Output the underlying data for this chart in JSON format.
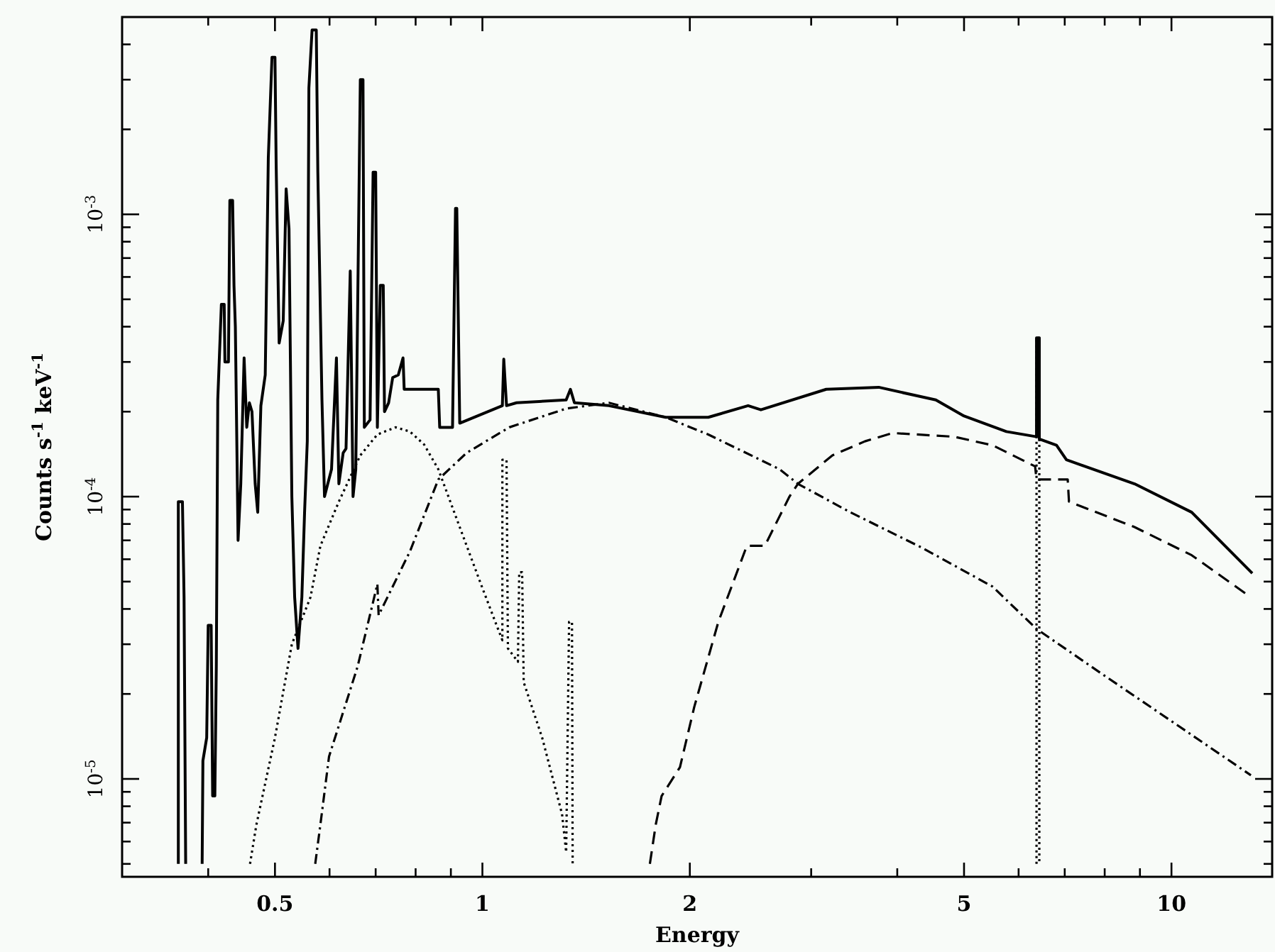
{
  "chart_data": {
    "type": "line",
    "xlabel": "Energy",
    "ylabel": "Counts s$^{-1}$ keV$^{-1}$",
    "log": "xy",
    "grid": false,
    "xlim": [
      0.3,
      14
    ],
    "ylim": [
      4.5e-06,
      0.005
    ],
    "xticks": [
      {
        "value": 0.4,
        "label": null
      },
      0.5,
      {
        "value": 0.6,
        "label": null
      },
      {
        "value": 0.7,
        "label": null
      },
      {
        "value": 0.8,
        "label": null
      },
      {
        "value": 0.9,
        "label": null
      },
      1,
      2,
      {
        "value": 3,
        "label": null
      },
      {
        "value": 4,
        "label": null
      },
      5,
      {
        "value": 6,
        "label": null
      },
      {
        "value": 7,
        "label": null
      },
      {
        "value": 8,
        "label": null
      },
      {
        "value": 9,
        "label": null
      },
      10
    ],
    "yticks": [
      {
        "value": 5e-06,
        "label": null
      },
      {
        "value": 6e-06,
        "label": null
      },
      {
        "value": 7e-06,
        "label": null
      },
      {
        "value": 8e-06,
        "label": null
      },
      {
        "value": 9e-06,
        "label": null
      },
      {
        "value": 1e-05,
        "label": "10$^{-5}$"
      },
      {
        "value": 2e-05,
        "label": null
      },
      {
        "value": 3e-05,
        "label": null
      },
      {
        "value": 4e-05,
        "label": null
      },
      {
        "value": 5e-05,
        "label": null
      },
      {
        "value": 6e-05,
        "label": null
      },
      {
        "value": 7e-05,
        "label": null
      },
      {
        "value": 8e-05,
        "label": null
      },
      {
        "value": 9e-05,
        "label": null
      },
      {
        "value": 0.0001,
        "label": "10$^{-4}$"
      },
      {
        "value": 0.0002,
        "label": null
      },
      {
        "value": 0.0003,
        "label": null
      },
      {
        "value": 0.0004,
        "label": null
      },
      {
        "value": 0.0005,
        "label": null
      },
      {
        "value": 0.0006,
        "label": null
      },
      {
        "value": 0.0007,
        "label": null
      },
      {
        "value": 0.0008,
        "label": null
      },
      {
        "value": 0.0009,
        "label": null
      },
      {
        "value": 0.001,
        "label": "10$^{-3}$"
      },
      {
        "value": 0.002,
        "label": null
      },
      {
        "value": 0.003,
        "label": null
      },
      {
        "value": 0.004,
        "label": null
      }
    ],
    "series": [
      {
        "color": "#000000",
        "line_style": "solid",
        "x": [
          0.362,
          0.362,
          0.367,
          0.369,
          0.371
        ],
        "values": [
          5e-06,
          9.6e-05,
          9.6e-05,
          4.4e-05,
          5e-06
        ]
      },
      {
        "color": "#000000",
        "line_style": "solid",
        "x": [
          0.392,
          0.393,
          0.398,
          0.4,
          0.404,
          0.406,
          0.409,
          0.411,
          0.413,
          0.418,
          0.422,
          0.423,
          0.428,
          0.43,
          0.434,
          0.436,
          0.438,
          0.442,
          0.446,
          0.451,
          0.455,
          0.459,
          0.463,
          0.468,
          0.472,
          0.477,
          0.484,
          0.489,
          0.495,
          0.5,
          0.502,
          0.507,
          0.514,
          0.519,
          0.524,
          0.529,
          0.534,
          0.54,
          0.547,
          0.552,
          0.557,
          0.56,
          0.566,
          0.574,
          0.577,
          0.585,
          0.59,
          0.604,
          0.614,
          0.619,
          0.628,
          0.634,
          0.643,
          0.649,
          0.655,
          0.665,
          0.671,
          0.674,
          0.687,
          0.694,
          0.7,
          0.704,
          0.711,
          0.718,
          0.721,
          0.731,
          0.741,
          0.755,
          0.767,
          0.77,
          0.823,
          0.863,
          0.867,
          0.905,
          0.914,
          0.918,
          0.927,
          1.069,
          1.074,
          1.084,
          1.121,
          1.323,
          1.342,
          1.36,
          1.526,
          1.845,
          2.127,
          2.43,
          2.536,
          3.155,
          3.76,
          4.55,
          5.0,
          5.76,
          6.37,
          6.37,
          6.43,
          6.43,
          6.81,
          7.04,
          8.84,
          10.7,
          13.1
        ],
        "values": [
          5e-06,
          1.16e-05,
          1.4e-05,
          3.5e-05,
          3.5e-05,
          8.7e-06,
          8.7e-06,
          2.5e-05,
          0.00022,
          0.00048,
          0.00048,
          0.0003,
          0.0003,
          0.00112,
          0.00112,
          0.00056,
          0.0004,
          7e-05,
          0.000111,
          0.00031,
          0.000176,
          0.000215,
          0.0002,
          0.000111,
          8.8e-05,
          0.00021,
          0.00027,
          0.00159,
          0.0036,
          0.0036,
          0.0015,
          0.00035,
          0.00042,
          0.00123,
          0.00089,
          0.0001,
          4.4e-05,
          2.9e-05,
          4.4e-05,
          8.8e-05,
          0.000157,
          0.0028,
          0.0045,
          0.0045,
          0.00141,
          0.00022,
          0.0001,
          0.000125,
          0.00031,
          0.000111,
          0.000143,
          0.000148,
          0.00063,
          0.0001,
          0.000125,
          0.003,
          0.003,
          0.000176,
          0.000187,
          0.00141,
          0.00141,
          0.000176,
          0.00056,
          0.00056,
          0.0002,
          0.000215,
          0.000264,
          0.00027,
          0.00031,
          0.00024,
          0.00024,
          0.00024,
          0.000176,
          0.000176,
          0.00105,
          0.00105,
          0.000182,
          0.00021,
          0.000307,
          0.00021,
          0.000215,
          0.00022,
          0.00024,
          0.000215,
          0.00021,
          0.000191,
          0.000191,
          0.00021,
          0.000203,
          0.00024,
          0.000244,
          0.00022,
          0.000193,
          0.00017,
          0.000163,
          0.000365,
          0.000365,
          0.00016,
          0.000152,
          0.000135,
          0.000111,
          8.8e-05,
          5.35e-05
        ]
      },
      {
        "color": "#000000",
        "line_style": "dotted",
        "x": [
          0.46,
          0.47,
          0.5,
          0.529,
          0.563,
          0.582,
          0.619,
          0.665,
          0.704,
          0.748,
          0.785,
          0.823,
          0.863,
          0.927,
          0.995,
          1.044,
          1.069,
          1.069,
          1.084,
          1.089,
          1.126,
          1.131,
          1.142,
          1.148,
          1.221,
          1.305,
          1.323,
          1.336,
          1.349,
          1.352
        ],
        "values": [
          5e-06,
          6.9e-06,
          1.4e-05,
          3e-05,
          4.4e-05,
          6.7e-05,
          9.6e-05,
          0.00014,
          0.000166,
          0.000176,
          0.00017,
          0.000153,
          0.000125,
          7.8e-05,
          4.9e-05,
          3.6e-05,
          3.1e-05,
          0.000135,
          0.000135,
          2.9e-05,
          2.6e-05,
          5.4e-05,
          5.4e-05,
          2.2e-05,
          1.4e-05,
          7.5e-06,
          5.5e-06,
          3.6e-05,
          3.6e-05,
          5e-06
        ]
      },
      {
        "color": "#000000",
        "line_style": "dotted",
        "x": [
          6.37,
          6.37,
          6.43,
          6.43
        ],
        "values": [
          5e-06,
          0.000365,
          0.000365,
          5e-06
        ]
      },
      {
        "color": "#000000",
        "line_style": "dashdot",
        "x": [
          0.572,
          0.582,
          0.599,
          0.659,
          0.704,
          0.707,
          0.785,
          0.863,
          0.949,
          1.094,
          1.323,
          1.526,
          1.845,
          2.127,
          2.7,
          2.87,
          3.42,
          4.34,
          5.5,
          6.37,
          8.04,
          10.2,
          13.04
        ],
        "values": [
          5e-06,
          6.9e-06,
          1.2e-05,
          2.5e-05,
          4.9e-05,
          3.8e-05,
          6.4e-05,
          0.000115,
          0.000143,
          0.000176,
          0.000205,
          0.000215,
          0.000191,
          0.000166,
          0.000125,
          0.000111,
          8.8e-05,
          6.6e-05,
          4.8e-05,
          3.4e-05,
          2.3e-05,
          1.55e-05,
          1.03e-05
        ]
      },
      {
        "color": "#000000",
        "line_style": "dashed",
        "x": [
          1.75,
          1.785,
          1.82,
          1.935,
          2.03,
          2.2,
          2.42,
          2.57,
          2.79,
          2.87,
          3.22,
          3.59,
          3.94,
          4.84,
          5.5,
          6.34,
          6.37,
          7.07,
          7.1,
          8.84,
          10.7,
          13.04
        ],
        "values": [
          5e-06,
          6.9e-06,
          8.7e-06,
          1.1e-05,
          1.8e-05,
          3.6e-05,
          6.7e-05,
          6.7e-05,
          0.0001,
          0.000111,
          0.00014,
          0.000157,
          0.000168,
          0.000163,
          0.000152,
          0.000128,
          0.000115,
          0.000115,
          9.6e-05,
          7.8e-05,
          6.2e-05,
          4.4e-05
        ]
      }
    ]
  }
}
